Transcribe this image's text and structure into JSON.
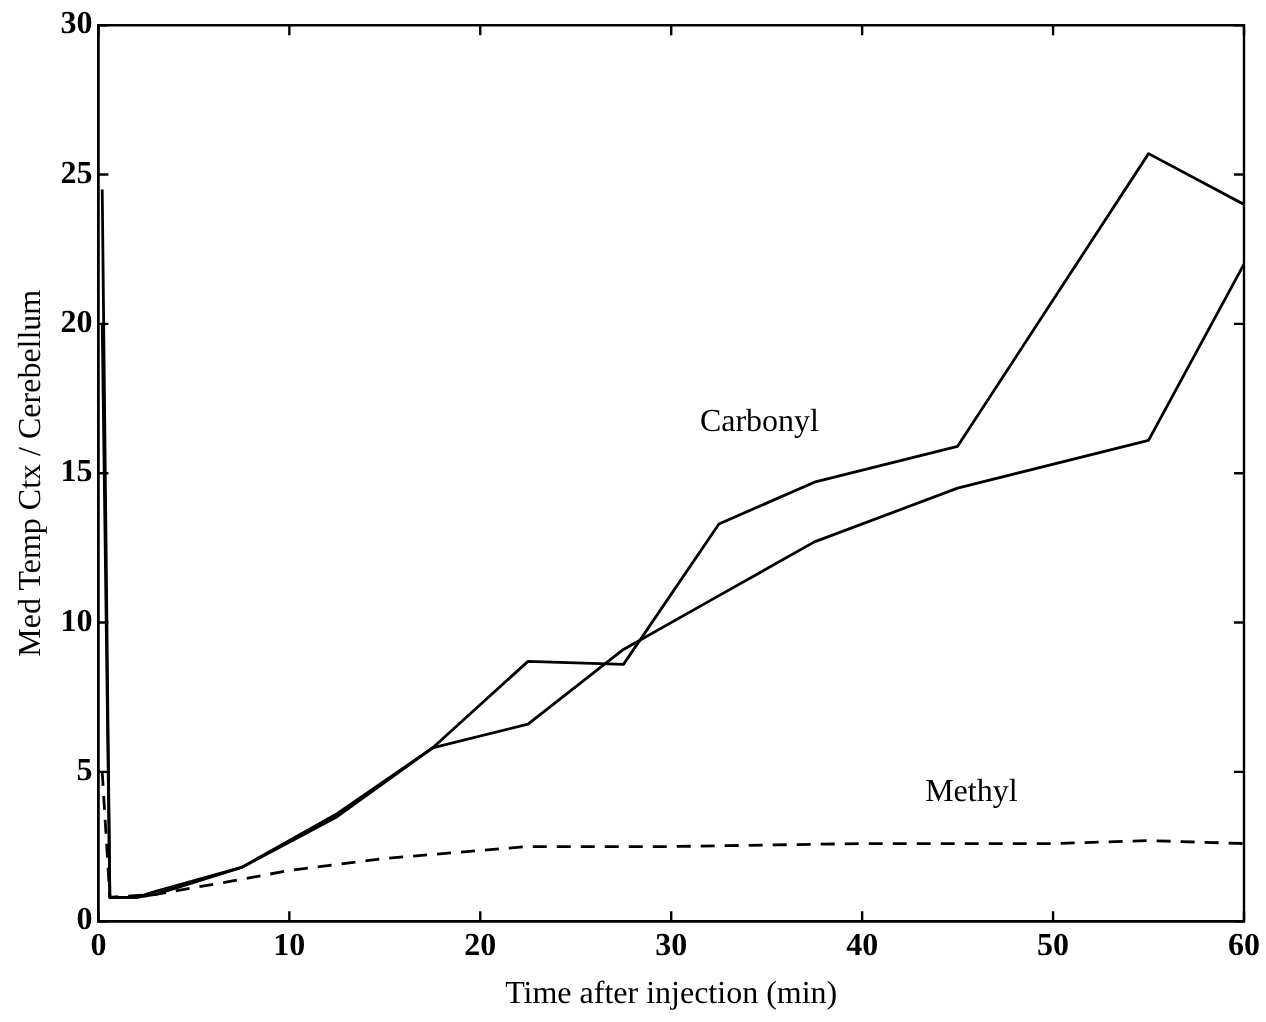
{
  "chart_data": {
    "type": "line",
    "xlabel": "Time after injection (min)",
    "ylabel": "Med Temp Ctx / Cerebellum",
    "xlim": [
      0,
      60
    ],
    "ylim": [
      0,
      30
    ],
    "xticks": [
      0,
      10,
      20,
      30,
      40,
      50,
      60
    ],
    "yticks": [
      0,
      5,
      10,
      15,
      20,
      25,
      30
    ],
    "grid": false,
    "legend": false,
    "marker": "none",
    "series": [
      {
        "color": "#000000",
        "line_style": "solid",
        "x": [
          0.2,
          0.6,
          2,
          3,
          7.5,
          12.5,
          17.5,
          22.5,
          27.5,
          32.5,
          37.5,
          45,
          55,
          60
        ],
        "values": [
          24.5,
          0.8,
          0.8,
          1.0,
          1.8,
          3.6,
          5.8,
          8.7,
          8.6,
          13.3,
          14.7,
          15.9,
          25.7,
          24
        ]
      },
      {
        "color": "#000000",
        "line_style": "solid",
        "x": [
          0.2,
          0.6,
          2,
          3,
          7.5,
          12.5,
          17.5,
          22.5,
          27.5,
          32.5,
          37.5,
          45,
          55,
          60
        ],
        "values": [
          20,
          0.8,
          0.8,
          0.9,
          1.8,
          3.5,
          5.8,
          6.6,
          9.1,
          10.9,
          12.7,
          14.5,
          16.1,
          22
        ]
      },
      {
        "color": "#000000",
        "line_style": "dashed",
        "x": [
          0.2,
          0.6,
          3,
          7.5,
          10,
          15,
          22.5,
          30,
          40,
          50,
          55,
          60
        ],
        "values": [
          5,
          0.8,
          0.9,
          1.4,
          1.7,
          2.1,
          2.5,
          2.5,
          2.6,
          2.6,
          2.7,
          2.6
        ]
      }
    ],
    "annotations": [
      "Carbonyl",
      "Methyl"
    ]
  }
}
